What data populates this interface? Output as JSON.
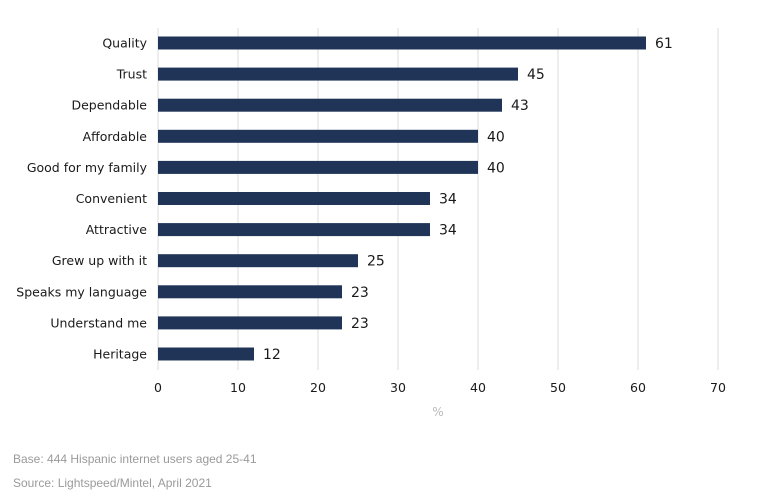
{
  "chart_data": {
    "type": "bar",
    "orientation": "horizontal",
    "categories": [
      "Quality",
      "Trust",
      "Dependable",
      "Affordable",
      "Good for my family",
      "Convenient",
      "Attractive",
      "Grew up with it",
      "Speaks my language",
      "Understand me",
      "Heritage"
    ],
    "values": [
      61,
      45,
      43,
      40,
      40,
      34,
      34,
      25,
      23,
      23,
      12
    ],
    "xlabel": "%",
    "xlim": [
      0,
      70
    ],
    "xticks": [
      0,
      10,
      20,
      30,
      40,
      50,
      60,
      70
    ],
    "grid": true,
    "bar_color": "#1f3457",
    "grid_color": "#dcdcdc"
  },
  "footnotes": {
    "base": "Base: 444 Hispanic internet users aged 25-41",
    "source": "Source: Lightspeed/Mintel, April 2021"
  }
}
